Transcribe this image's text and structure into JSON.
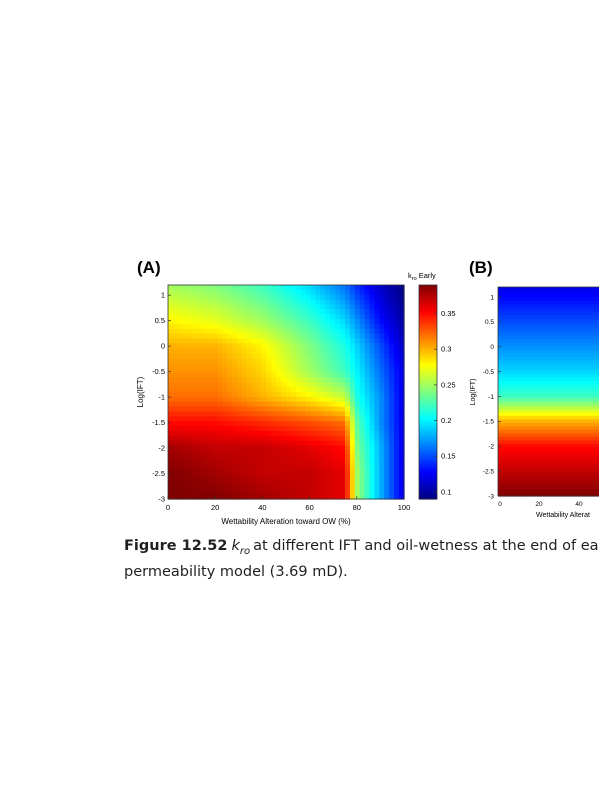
{
  "chart_data": [
    {
      "type": "heatmap",
      "panel_label": "(A)",
      "xlabel": "Wettability Alteration toward OW (%)",
      "ylabel": "Log(IFT)",
      "xlim": [
        0,
        100
      ],
      "ylim": [
        -3,
        1.2
      ],
      "x_ticks": [
        0,
        20,
        40,
        60,
        80,
        100
      ],
      "y_ticks": [
        1,
        0.5,
        0,
        -0.5,
        -1,
        -1.5,
        -2,
        -2.5,
        -3
      ],
      "colorbar": {
        "title_main": "k",
        "title_sub": "ro",
        "title_suffix": " Early",
        "range": [
          0.09,
          0.39
        ],
        "ticks": [
          0.35,
          0.3,
          0.25,
          0.2,
          0.15,
          0.1
        ]
      },
      "x": [
        0,
        20,
        40,
        60,
        75,
        80,
        90,
        100
      ],
      "y": [
        1.2,
        0.5,
        0,
        -0.5,
        -1,
        -1.5,
        -2,
        -2.5,
        -3
      ],
      "z": [
        [
          0.25,
          0.24,
          0.22,
          0.19,
          0.16,
          0.14,
          0.11,
          0.09
        ],
        [
          0.28,
          0.27,
          0.25,
          0.22,
          0.19,
          0.17,
          0.13,
          0.1
        ],
        [
          0.3,
          0.3,
          0.28,
          0.24,
          0.21,
          0.19,
          0.15,
          0.11
        ],
        [
          0.31,
          0.31,
          0.29,
          0.25,
          0.22,
          0.2,
          0.16,
          0.12
        ],
        [
          0.32,
          0.32,
          0.3,
          0.28,
          0.26,
          0.21,
          0.17,
          0.12
        ],
        [
          0.35,
          0.35,
          0.34,
          0.33,
          0.32,
          0.23,
          0.17,
          0.12
        ],
        [
          0.38,
          0.37,
          0.37,
          0.36,
          0.35,
          0.24,
          0.18,
          0.12
        ],
        [
          0.39,
          0.38,
          0.37,
          0.37,
          0.36,
          0.25,
          0.18,
          0.12
        ],
        [
          0.39,
          0.39,
          0.38,
          0.37,
          0.36,
          0.25,
          0.18,
          0.12
        ]
      ]
    },
    {
      "type": "heatmap",
      "panel_label": "(B)",
      "xlabel": "Wettability Alterat",
      "ylabel": "Log(IFT)",
      "y_ticks": [
        1,
        0.5,
        0,
        -0.5,
        -1,
        -1.5,
        -2,
        -2.5,
        -3
      ],
      "x_ticks": [
        0,
        20,
        40
      ],
      "y": [
        1.2,
        0.5,
        0,
        -0.5,
        -1,
        -1.5,
        -2,
        -2.5,
        -3
      ],
      "z_column": [
        0.12,
        0.15,
        0.17,
        0.19,
        0.22,
        0.3,
        0.35,
        0.37,
        0.39
      ]
    }
  ],
  "caption": {
    "figure_label": "Figure 12.52",
    "symbol_main": "k",
    "symbol_sub": "ro",
    "line1_rest": "at different IFT and oil-wetness at the end of ea",
    "line2": "permeability model (3.69 mD)."
  }
}
